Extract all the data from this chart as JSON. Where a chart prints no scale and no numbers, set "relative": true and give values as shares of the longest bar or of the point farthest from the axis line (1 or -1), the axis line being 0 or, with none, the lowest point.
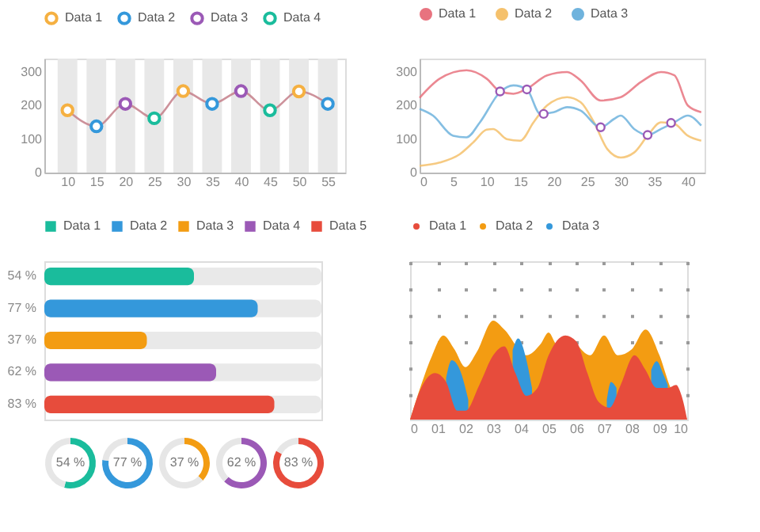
{
  "chart_data": [
    {
      "type": "line",
      "xlim": [
        6,
        58
      ],
      "xticks": [
        10,
        15,
        20,
        25,
        30,
        35,
        40,
        45,
        50,
        55
      ],
      "ylim": [
        0,
        340
      ],
      "yticks": [
        0,
        100,
        200,
        300
      ],
      "legend": "top",
      "marker": "circle",
      "bands": [
        {
          "axis": "x",
          "from": 8.3,
          "to": 11.7,
          "color": "#e8e8e8"
        },
        {
          "axis": "x",
          "from": 13.3,
          "to": 16.7,
          "color": "#e8e8e8"
        },
        {
          "axis": "x",
          "from": 18.3,
          "to": 21.7,
          "color": "#e8e8e8"
        },
        {
          "axis": "x",
          "from": 23.3,
          "to": 26.7,
          "color": "#e8e8e8"
        },
        {
          "axis": "x",
          "from": 28.3,
          "to": 31.7,
          "color": "#e8e8e8"
        },
        {
          "axis": "x",
          "from": 33.3,
          "to": 36.7,
          "color": "#e8e8e8"
        },
        {
          "axis": "x",
          "from": 38.3,
          "to": 41.7,
          "color": "#e8e8e8"
        },
        {
          "axis": "x",
          "from": 43.3,
          "to": 46.7,
          "color": "#e8e8e8"
        },
        {
          "axis": "x",
          "from": 48.3,
          "to": 51.7,
          "color": "#e8e8e8"
        },
        {
          "axis": "x",
          "from": 53.3,
          "to": 56.7,
          "color": "#e8e8e8"
        }
      ],
      "series": [
        {
          "type": "line",
          "marker": "none",
          "color": "#c47f8a",
          "x": [
            10,
            15,
            20,
            25,
            30,
            35,
            40,
            45,
            50,
            55
          ],
          "values": [
            186,
            138,
            205,
            162,
            243,
            205,
            243,
            186,
            242,
            205
          ]
        },
        {
          "type": "scatter",
          "name": "Data 1",
          "color": "#f5b041",
          "x": [
            10,
            30,
            50
          ],
          "values": [
            186,
            243,
            242
          ]
        },
        {
          "type": "scatter",
          "name": "Data 2",
          "color": "#3498db",
          "x": [
            15,
            35,
            55
          ],
          "values": [
            138,
            205,
            205
          ]
        },
        {
          "type": "scatter",
          "name": "Data 3",
          "color": "#9b59b6",
          "x": [
            20,
            40
          ],
          "values": [
            205,
            243
          ]
        },
        {
          "type": "scatter",
          "name": "Data 4",
          "color": "#1abc9c",
          "x": [
            25,
            45
          ],
          "values": [
            162,
            186
          ]
        }
      ]
    },
    {
      "type": "line",
      "xlim": [
        0,
        42.5
      ],
      "xticks": [
        0,
        5,
        10,
        15,
        20,
        25,
        30,
        35,
        40
      ],
      "ylim": [
        0,
        340
      ],
      "yticks": [
        0,
        100,
        200,
        300
      ],
      "legend": "top",
      "series": [
        {
          "type": "line",
          "name": "Data 1",
          "color": "#e8737f",
          "x": [
            0,
            3,
            7,
            10,
            12,
            14,
            16,
            19,
            22,
            24,
            27,
            30,
            33,
            36,
            38,
            40,
            42
          ],
          "values": [
            223,
            280,
            305,
            280,
            242,
            235,
            250,
            290,
            300,
            275,
            215,
            225,
            270,
            300,
            290,
            200,
            180
          ]
        },
        {
          "type": "line",
          "name": "Data 2",
          "color": "#f5c16c",
          "x": [
            0,
            3,
            6,
            8,
            10,
            11,
            13,
            15,
            17,
            19,
            22,
            24,
            26,
            28,
            30,
            32,
            34,
            36,
            38,
            40,
            42
          ],
          "values": [
            20,
            30,
            55,
            90,
            128,
            130,
            100,
            95,
            150,
            200,
            225,
            210,
            150,
            70,
            45,
            60,
            110,
            150,
            145,
            110,
            95
          ]
        },
        {
          "type": "line",
          "name": "Data 3",
          "color": "#6fb3dd",
          "x": [
            0,
            2,
            5,
            7,
            9,
            12,
            14,
            16,
            18,
            20,
            22,
            24,
            27,
            29,
            30,
            32,
            34,
            36,
            38,
            40,
            42
          ],
          "values": [
            190,
            170,
            110,
            105,
            150,
            240,
            260,
            248,
            175,
            180,
            195,
            185,
            135,
            160,
            170,
            130,
            112,
            130,
            150,
            170,
            140
          ]
        },
        {
          "type": "scatter",
          "color": "#9b59b6",
          "x": [
            12,
            16,
            18.5,
            27,
            34,
            37.5
          ],
          "values": [
            242,
            248,
            175,
            135,
            112,
            148
          ]
        }
      ]
    },
    {
      "type": "bar",
      "orientation": "horizontal",
      "stacked": true,
      "categories": [
        null,
        null,
        null,
        null,
        null
      ],
      "xlim": [
        0,
        100
      ],
      "legend": "top",
      "series": [
        {
          "name": "Data 1",
          "color": "#1abc9c",
          "values": [
            54,
            null,
            null,
            null,
            null
          ],
          "value_labels": [
            "54 %",
            null,
            null,
            null,
            null
          ]
        },
        {
          "name": "Data 2",
          "color": "#3498db",
          "values": [
            null,
            77,
            null,
            null,
            null
          ],
          "value_labels": [
            null,
            "77 %",
            null,
            null,
            null
          ]
        },
        {
          "name": "Data 3",
          "color": "#f39c12",
          "values": [
            null,
            null,
            37,
            null,
            null
          ],
          "value_labels": [
            null,
            null,
            "37 %",
            null,
            null
          ]
        },
        {
          "name": "Data 4",
          "color": "#9b59b6",
          "values": [
            null,
            null,
            null,
            62,
            null
          ],
          "value_labels": [
            null,
            null,
            null,
            "62 %",
            null
          ]
        },
        {
          "name": "Data 5",
          "color": "#e74c3c",
          "values": [
            null,
            null,
            null,
            null,
            83
          ],
          "value_labels": [
            null,
            null,
            null,
            null,
            "83 %"
          ]
        }
      ]
    },
    {
      "type": "area",
      "relative": true,
      "grid": "x",
      "legend": "top",
      "xlim": [
        0,
        10
      ],
      "xticks": [
        {
          "value": 0,
          "label": "0"
        },
        {
          "value": 1,
          "label": "01"
        },
        {
          "value": 2,
          "label": "02"
        },
        {
          "value": 3,
          "label": "03"
        },
        {
          "value": 4,
          "label": "04"
        },
        {
          "value": 5,
          "label": "05"
        },
        {
          "value": 6,
          "label": "06"
        },
        {
          "value": 7,
          "label": "07"
        },
        {
          "value": 8,
          "label": "08"
        },
        {
          "value": 9,
          "label": "09"
        },
        {
          "value": 10,
          "label": "10"
        }
      ],
      "series": [
        {
          "name": "Data 1",
          "color": "#e74c3c",
          "x": [
            0,
            0.4,
            0.9,
            1.3,
            1.7,
            2.0,
            2.5,
            3.0,
            3.4,
            3.8,
            4.2,
            4.6,
            5.0,
            5.6,
            6.0,
            6.4,
            6.8,
            7.2,
            7.6,
            8.1,
            8.5,
            8.9,
            9.3,
            9.6,
            9.8,
            10
          ],
          "values": [
            0,
            0.32,
            0.47,
            0.38,
            0.09,
            0.09,
            0.35,
            0.65,
            0.74,
            0.47,
            0.24,
            0.32,
            0.65,
            0.85,
            0.79,
            0.47,
            0.18,
            0.12,
            0.35,
            0.65,
            0.5,
            0.32,
            0.32,
            0.35,
            0.24,
            0
          ]
        },
        {
          "name": "Data 2",
          "color": "#f39c12",
          "x": [
            0,
            0.4,
            0.8,
            1.2,
            1.6,
            2.0,
            2.4,
            3.0,
            3.4,
            4.2,
            4.7,
            5.0,
            5.3,
            5.7,
            6.5,
            7.0,
            7.5,
            8.0,
            8.5,
            9.0,
            9.4,
            9.8,
            10
          ],
          "values": [
            0,
            0.35,
            0.65,
            0.85,
            0.71,
            0.53,
            0.68,
            1,
            0.91,
            0.65,
            0.76,
            0.88,
            0.76,
            0.82,
            0.65,
            0.85,
            0.65,
            0.71,
            0.91,
            0.65,
            0.32,
            0.12,
            0
          ]
        },
        {
          "name": "Data 3",
          "color": "#3498db",
          "x": [
            1.3,
            1.5,
            1.8,
            2.1,
            2.2,
            3.7,
            3.9,
            4.2,
            4.4,
            4.5,
            7.1,
            7.25,
            7.45,
            7.6,
            8.7,
            8.9,
            9.15,
            9.3
          ],
          "values": [
            0.42,
            0.6,
            0.5,
            0.2,
            null,
            0.7,
            0.82,
            0.6,
            0.32,
            null,
            0.2,
            0.38,
            0.32,
            null,
            0.5,
            0.59,
            0.45,
            0.35
          ]
        }
      ]
    },
    {
      "type": "donut",
      "categories": [
        null,
        null
      ],
      "values": [
        54,
        46
      ],
      "colors": [
        "#1abc9c",
        "#e6e6e6"
      ],
      "annotations": [
        "54 %"
      ]
    },
    {
      "type": "donut",
      "categories": [
        null,
        null
      ],
      "values": [
        77,
        23
      ],
      "colors": [
        "#3498db",
        "#e6e6e6"
      ],
      "annotations": [
        "77 %"
      ]
    },
    {
      "type": "donut",
      "categories": [
        null,
        null
      ],
      "values": [
        37,
        63
      ],
      "colors": [
        "#f39c12",
        "#e6e6e6"
      ],
      "annotations": [
        "37 %"
      ]
    },
    {
      "type": "donut",
      "categories": [
        null,
        null
      ],
      "values": [
        62,
        38
      ],
      "colors": [
        "#9b59b6",
        "#e6e6e6"
      ],
      "annotations": [
        "62 %"
      ]
    },
    {
      "type": "donut",
      "categories": [
        null,
        null
      ],
      "values": [
        83,
        17
      ],
      "colors": [
        "#e74c3c",
        "#e6e6e6"
      ],
      "annotations": [
        "83 %"
      ]
    }
  ]
}
